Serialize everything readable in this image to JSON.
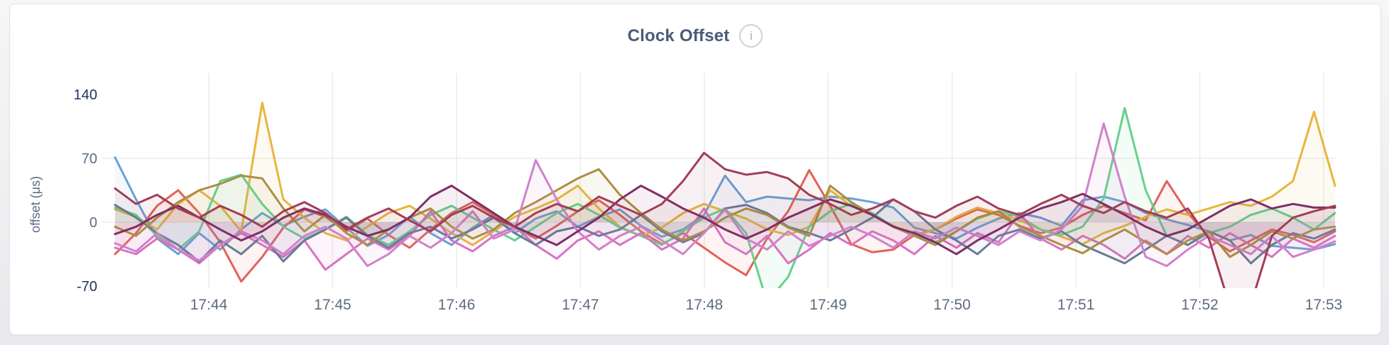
{
  "card": {
    "title": "Clock Offset",
    "info_icon_glyph": "i"
  },
  "colors": {
    "page_background": "#eef0f2",
    "card_background": "#ffffff",
    "card_border": "#e2e4e8",
    "title": "#4a5b77",
    "axis_tick": "#5e6b84",
    "axis_tick_emphasis": "#20345a",
    "grid": "#ececee",
    "info_icon": "#b6bcc4"
  },
  "chart_data": {
    "type": "line",
    "title": "Clock Offset",
    "xlabel": "",
    "ylabel": "offset (μs)",
    "ylim": [
      -70,
      140
    ],
    "x_range": [
      "17:43:15",
      "17:53:00"
    ],
    "point_interval_seconds": 10,
    "grid": true,
    "legend": false,
    "yticks": [
      {
        "label": "140",
        "value": 140,
        "gridline": false,
        "emphasis": true
      },
      {
        "label": "70",
        "value": 70,
        "gridline": true,
        "emphasis": false
      },
      {
        "label": "0",
        "value": 0,
        "gridline": true,
        "emphasis": false
      },
      {
        "label": "-70",
        "value": -70,
        "gridline": false,
        "emphasis": true
      }
    ],
    "xticks": [
      "17:44",
      "17:45",
      "17:46",
      "17:47",
      "17:48",
      "17:49",
      "17:50",
      "17:51",
      "17:52",
      "17:53"
    ],
    "series": [
      {
        "name": "blue",
        "color": "#6ba0d6",
        "values": [
          71,
          25,
          -18,
          -35,
          -12,
          -30,
          -8,
          10,
          -4,
          6,
          14,
          -6,
          -26,
          -14,
          6,
          -12,
          -25,
          -6,
          8,
          -12,
          4,
          12,
          -5,
          6,
          14,
          -4,
          -16,
          -8,
          8,
          51,
          22,
          28,
          26,
          24,
          28,
          26,
          22,
          16,
          -6,
          -12,
          -18,
          -6,
          4,
          10,
          5,
          -4,
          24,
          28,
          22,
          10,
          3,
          -3,
          -10,
          -20,
          -14,
          -26,
          -28,
          -30,
          -24
        ]
      },
      {
        "name": "salmon",
        "color": "#e0635a",
        "values": [
          -35,
          -12,
          18,
          35,
          10,
          -22,
          -65,
          -38,
          -6,
          14,
          6,
          -10,
          4,
          -14,
          -28,
          -8,
          10,
          22,
          8,
          -6,
          -18,
          -4,
          12,
          24,
          8,
          -10,
          -24,
          -12,
          -28,
          -44,
          -58,
          -18,
          12,
          57,
          18,
          -24,
          -33,
          -30,
          -14,
          -8,
          4,
          14,
          8,
          -4,
          -12,
          -6,
          8,
          18,
          10,
          2,
          45,
          10,
          -16,
          -32,
          -20,
          -8,
          -14,
          -22,
          -10
        ]
      },
      {
        "name": "gold",
        "color": "#e7b63e",
        "values": [
          14,
          6,
          -8,
          20,
          35,
          18,
          -10,
          131,
          25,
          5,
          -12,
          -20,
          -5,
          10,
          18,
          4,
          -12,
          -25,
          -10,
          6,
          15,
          25,
          40,
          15,
          -5,
          -15,
          -6,
          10,
          20,
          12,
          4,
          -8,
          -14,
          -5,
          35,
          18,
          8,
          -4,
          -15,
          -8,
          6,
          16,
          10,
          2,
          -8,
          -16,
          -24,
          -12,
          -4,
          6,
          14,
          8,
          15,
          22,
          18,
          28,
          45,
          121,
          40
        ]
      },
      {
        "name": "green",
        "color": "#67d08d",
        "values": [
          16,
          8,
          -15,
          -30,
          -10,
          45,
          52,
          20,
          -5,
          -18,
          -8,
          6,
          -14,
          -25,
          -10,
          8,
          18,
          5,
          -8,
          -20,
          -5,
          10,
          20,
          8,
          -6,
          -15,
          -25,
          -10,
          5,
          15,
          -12,
          -88,
          -60,
          -5,
          12,
          20,
          10,
          -5,
          -15,
          -22,
          -10,
          4,
          12,
          6,
          -8,
          -14,
          -5,
          26,
          125,
          35,
          -15,
          -25,
          -12,
          -5,
          8,
          15,
          5,
          -8,
          10
        ]
      },
      {
        "name": "magenta",
        "color": "#d873c0",
        "values": [
          -28,
          -35,
          -18,
          -30,
          -45,
          -25,
          -12,
          -25,
          -38,
          -20,
          -52,
          -35,
          -18,
          -30,
          -15,
          12,
          -20,
          -32,
          -15,
          -5,
          -25,
          -40,
          -20,
          -10,
          -25,
          -12,
          -30,
          -18,
          15,
          -22,
          -35,
          -15,
          -45,
          -30,
          -12,
          -25,
          -10,
          -20,
          -35,
          -15,
          -28,
          -12,
          -22,
          10,
          -18,
          -30,
          -15,
          -25,
          -40,
          -20,
          -35,
          -15,
          -28,
          -12,
          -25,
          -38,
          -18,
          -28,
          -15
        ]
      },
      {
        "name": "slate",
        "color": "#6a7a96",
        "values": [
          19,
          5,
          -12,
          -25,
          -43,
          -20,
          -35,
          -15,
          -43,
          -20,
          -8,
          5,
          -15,
          -28,
          -12,
          -5,
          -18,
          -8,
          5,
          -12,
          -25,
          -10,
          -5,
          -15,
          -8,
          8,
          -10,
          -22,
          -12,
          15,
          19,
          10,
          -5,
          -12,
          -20,
          -8,
          5,
          25,
          12,
          -8,
          -20,
          -35,
          -15,
          -8,
          -18,
          -10,
          -25,
          -35,
          -45,
          -30,
          -15,
          -25,
          -10,
          -20,
          -45,
          -25,
          -12,
          -18,
          -8
        ]
      },
      {
        "name": "khaki",
        "color": "#ab8e42",
        "values": [
          -5,
          -15,
          5,
          22,
          35,
          42,
          51,
          48,
          15,
          -10,
          8,
          -12,
          -25,
          -8,
          5,
          15,
          -5,
          -18,
          -8,
          10,
          22,
          35,
          48,
          58,
          30,
          10,
          -8,
          -20,
          -10,
          5,
          15,
          8,
          -6,
          -15,
          40,
          22,
          8,
          -5,
          -15,
          -25,
          -10,
          5,
          12,
          -5,
          -15,
          -25,
          -34,
          -20,
          -8,
          -22,
          -35,
          -20,
          -10,
          -38,
          -25,
          -10,
          -18,
          -8,
          -5
        ]
      },
      {
        "name": "orchid",
        "color": "#cf82ca",
        "values": [
          -23,
          -32,
          -12,
          -30,
          -42,
          -25,
          -10,
          -20,
          -35,
          -15,
          -5,
          -18,
          -48,
          -35,
          -15,
          -28,
          -12,
          12,
          -18,
          -8,
          68,
          25,
          -10,
          -30,
          -15,
          -5,
          -20,
          -35,
          -12,
          14,
          -18,
          -30,
          -10,
          -26,
          -15,
          -5,
          -15,
          -28,
          -10,
          -18,
          -6,
          -15,
          -25,
          -10,
          -20,
          -8,
          18,
          108,
          28,
          -38,
          -48,
          -30,
          -15,
          -25,
          -35,
          -15,
          -38,
          -30,
          -21
        ]
      },
      {
        "name": "wine",
        "color": "#7e2e66",
        "values": [
          -13,
          -5,
          8,
          18,
          5,
          -8,
          -20,
          -10,
          5,
          15,
          8,
          -5,
          -15,
          -8,
          5,
          28,
          40,
          25,
          10,
          -5,
          -15,
          -25,
          -10,
          5,
          25,
          40,
          28,
          15,
          5,
          -8,
          -18,
          -8,
          5,
          15,
          25,
          18,
          8,
          -5,
          -12,
          -22,
          -35,
          -20,
          -8,
          5,
          15,
          22,
          31,
          20,
          8,
          -5,
          -15,
          -8,
          5,
          18,
          25,
          15,
          20,
          16,
          16
        ]
      },
      {
        "name": "maroon",
        "color": "#a23e56",
        "values": [
          37,
          20,
          30,
          15,
          5,
          18,
          8,
          -5,
          12,
          22,
          10,
          -8,
          5,
          15,
          2,
          -10,
          8,
          18,
          5,
          -5,
          10,
          20,
          12,
          28,
          18,
          8,
          20,
          45,
          76,
          58,
          52,
          55,
          48,
          30,
          20,
          8,
          15,
          25,
          12,
          5,
          18,
          28,
          15,
          8,
          20,
          30,
          18,
          10,
          22,
          12,
          5,
          15,
          -18,
          -92,
          -90,
          -15,
          5,
          12,
          18
        ]
      }
    ]
  }
}
